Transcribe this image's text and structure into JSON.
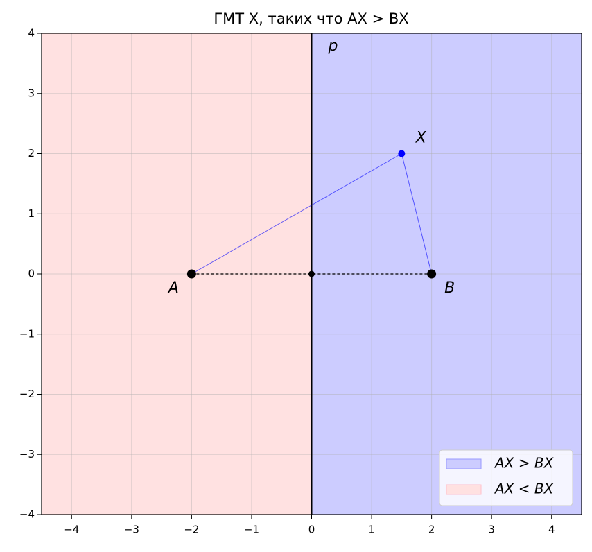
{
  "chart_data": {
    "type": "scatter",
    "title": "ГМТ X, таких что AX > BX",
    "xlim": [
      -4.5,
      4.5
    ],
    "ylim": [
      -4,
      4
    ],
    "xticks": [
      {
        "value": -4,
        "label": "−4"
      },
      {
        "value": -3,
        "label": "−3"
      },
      {
        "value": -2,
        "label": "−2"
      },
      {
        "value": -1,
        "label": "−1"
      },
      0,
      1,
      2,
      3,
      4
    ],
    "yticks": [
      {
        "value": -4,
        "label": "−4"
      },
      {
        "value": -3,
        "label": "−3"
      },
      {
        "value": -2,
        "label": "−2"
      },
      {
        "value": -1,
        "label": "−1"
      },
      0,
      1,
      2,
      3,
      4
    ],
    "grid": true,
    "line_x": 0,
    "line_label": "p",
    "points": [
      {
        "name": "A",
        "x": -2,
        "y": 0,
        "color": "#000000"
      },
      {
        "name": "B",
        "x": 2,
        "y": 0,
        "color": "#000000"
      },
      {
        "name": "X",
        "x": 1.5,
        "y": 2,
        "color": "#0000ff"
      },
      {
        "x": 0,
        "y": 0,
        "color": "#000000"
      }
    ],
    "regions": [
      {
        "name": "AX > BX",
        "side": "right",
        "color": "#ccccff",
        "edge": "#9999ff"
      },
      {
        "name": "AX < BX",
        "side": "left",
        "color": "#ffe1e1",
        "edge": "#ffbfcb"
      }
    ],
    "legend": "lower right"
  }
}
